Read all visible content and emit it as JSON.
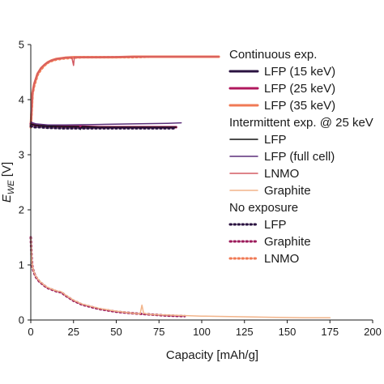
{
  "chart_data": {
    "type": "line",
    "xlabel": "Capacity [mAh/g]",
    "ylabel": "E_WE [V]",
    "ylabel_main": "E",
    "ylabel_sub": "WE",
    "ylabel_unit": " [V]",
    "xlim": [
      0,
      200
    ],
    "ylim": [
      0,
      5
    ],
    "xticks": [
      0,
      25,
      50,
      75,
      100,
      125,
      150,
      175,
      200
    ],
    "xtick_labels": [
      "0",
      "25",
      "50",
      "75",
      "100",
      "125",
      "150",
      "175",
      "200"
    ],
    "yticks": [
      0,
      1,
      2,
      3,
      4,
      5
    ],
    "ytick_labels": [
      "0",
      "1",
      "2",
      "3",
      "4",
      "5"
    ],
    "grid": false,
    "legend_position": "right",
    "legend_groups": [
      {
        "title": "Continuous exp.",
        "entries": [
          {
            "label": "LFP (15 keV)",
            "color": "#2a1240",
            "style": "solid",
            "width": 3
          },
          {
            "label": "LFP (25 keV)",
            "color": "#b0185e",
            "style": "solid",
            "width": 3
          },
          {
            "label": "LFP (35 keV)",
            "color": "#f07a55",
            "style": "solid",
            "width": 3
          }
        ]
      },
      {
        "title": "Intermittent exp. @ 25 keV",
        "entries": [
          {
            "label": "LFP",
            "color": "#111111",
            "style": "solid",
            "width": 1.5
          },
          {
            "label": "LFP (full cell)",
            "color": "#5c2f7a",
            "style": "solid",
            "width": 1.5
          },
          {
            "label": "LNMO",
            "color": "#d35b63",
            "style": "solid",
            "width": 1.5
          },
          {
            "label": "Graphite",
            "color": "#f2b48a",
            "style": "solid",
            "width": 1.5
          }
        ]
      },
      {
        "title": "No exposure",
        "entries": [
          {
            "label": "LFP",
            "color": "#2a1240",
            "style": "dotted",
            "width": 3
          },
          {
            "label": "Graphite",
            "color": "#9c1c5c",
            "style": "dotted",
            "width": 3
          },
          {
            "label": "LNMO",
            "color": "#f07a55",
            "style": "dotted",
            "width": 3
          }
        ]
      }
    ],
    "series": [
      {
        "label": "LNMO (no exposure)",
        "color": "#f07a55",
        "style": "dotted",
        "width": 3,
        "x": [
          0,
          0.5,
          1,
          2,
          4,
          6,
          8,
          10,
          12,
          15,
          20,
          25,
          30,
          40,
          50,
          60,
          70,
          80
        ],
        "y": [
          3.5,
          3.8,
          4.1,
          4.25,
          4.45,
          4.55,
          4.62,
          4.67,
          4.7,
          4.73,
          4.75,
          4.76,
          4.77,
          4.77,
          4.77,
          4.77,
          4.78,
          4.78
        ]
      },
      {
        "label": "LFP (35 keV)",
        "color": "#f07a55",
        "style": "solid",
        "width": 3,
        "x": [
          0,
          0.5,
          1,
          2,
          4,
          6,
          8,
          10,
          12,
          15,
          20,
          25,
          30,
          40,
          50,
          60,
          70,
          80,
          90,
          100,
          110
        ],
        "y": [
          3.5,
          3.85,
          4.12,
          4.28,
          4.47,
          4.57,
          4.63,
          4.68,
          4.71,
          4.74,
          4.76,
          4.77,
          4.77,
          4.77,
          4.77,
          4.78,
          4.78,
          4.78,
          4.78,
          4.78,
          4.78
        ]
      },
      {
        "label": "LNMO (intermittent)",
        "color": "#d35b63",
        "style": "solid",
        "width": 1.5,
        "x": [
          0,
          1,
          2,
          4,
          6,
          8,
          10,
          12,
          15,
          20,
          24,
          25,
          25.5,
          26,
          30,
          40,
          60,
          80,
          100,
          110
        ],
        "y": [
          3.5,
          4.1,
          4.3,
          4.48,
          4.58,
          4.64,
          4.68,
          4.71,
          4.74,
          4.76,
          4.77,
          4.62,
          4.77,
          4.77,
          4.77,
          4.77,
          4.78,
          4.78,
          4.78,
          4.78
        ]
      },
      {
        "label": "LFP (15 keV)",
        "color": "#2a1240",
        "style": "solid",
        "width": 3,
        "x": [
          0,
          1,
          2,
          5,
          10,
          20,
          30,
          40,
          60,
          85
        ],
        "y": [
          3.56,
          3.55,
          3.54,
          3.53,
          3.52,
          3.51,
          3.5,
          3.5,
          3.5,
          3.5
        ]
      },
      {
        "label": "LFP (25 keV)",
        "color": "#b0185e",
        "style": "solid",
        "width": 3,
        "x": [
          0,
          1,
          2,
          5,
          10,
          20,
          30,
          40,
          60,
          85
        ],
        "y": [
          3.56,
          3.55,
          3.54,
          3.53,
          3.52,
          3.51,
          3.51,
          3.5,
          3.5,
          3.5
        ]
      },
      {
        "label": "LFP (intermittent)",
        "color": "#111111",
        "style": "solid",
        "width": 1.5,
        "x": [
          0,
          1,
          2,
          5,
          10,
          20,
          28,
          29,
          30,
          40,
          60,
          85
        ],
        "y": [
          3.56,
          3.55,
          3.54,
          3.53,
          3.52,
          3.51,
          3.51,
          3.46,
          3.51,
          3.5,
          3.5,
          3.5
        ]
      },
      {
        "label": "LFP (full cell)",
        "color": "#5c2f7a",
        "style": "solid",
        "width": 1.5,
        "x": [
          0,
          1,
          3,
          10,
          20,
          40,
          60,
          80,
          88
        ],
        "y": [
          3.6,
          3.58,
          3.56,
          3.54,
          3.54,
          3.55,
          3.56,
          3.57,
          3.58
        ]
      },
      {
        "label": "LFP (no exposure)",
        "color": "#2a1240",
        "style": "dotted",
        "width": 3,
        "x": [
          0,
          1,
          2,
          5,
          10,
          20,
          30,
          40,
          60,
          85
        ],
        "y": [
          3.52,
          3.51,
          3.5,
          3.5,
          3.49,
          3.48,
          3.48,
          3.48,
          3.48,
          3.48
        ]
      },
      {
        "label": "Graphite (no exposure)",
        "color": "#9c1c5c",
        "style": "dotted",
        "width": 3,
        "x": [
          0,
          0.5,
          1,
          2,
          3,
          5,
          8,
          10,
          15,
          18,
          20,
          25,
          30,
          40,
          50,
          60,
          70,
          80,
          90
        ],
        "y": [
          1.5,
          1.1,
          0.95,
          0.85,
          0.78,
          0.7,
          0.62,
          0.58,
          0.52,
          0.5,
          0.45,
          0.35,
          0.28,
          0.2,
          0.15,
          0.12,
          0.1,
          0.08,
          0.07
        ]
      },
      {
        "label": "Graphite (intermittent)",
        "color": "#f2b48a",
        "style": "solid",
        "width": 1.5,
        "x": [
          0,
          0.5,
          1,
          2,
          3,
          5,
          8,
          10,
          15,
          18,
          20,
          25,
          30,
          40,
          50,
          60,
          64,
          65,
          66,
          70,
          80,
          100,
          120,
          140,
          160,
          175
        ],
        "y": [
          1.5,
          1.1,
          0.96,
          0.86,
          0.79,
          0.71,
          0.63,
          0.59,
          0.53,
          0.51,
          0.46,
          0.36,
          0.29,
          0.21,
          0.16,
          0.12,
          0.11,
          0.27,
          0.12,
          0.1,
          0.09,
          0.07,
          0.06,
          0.05,
          0.04,
          0.04
        ]
      }
    ]
  }
}
